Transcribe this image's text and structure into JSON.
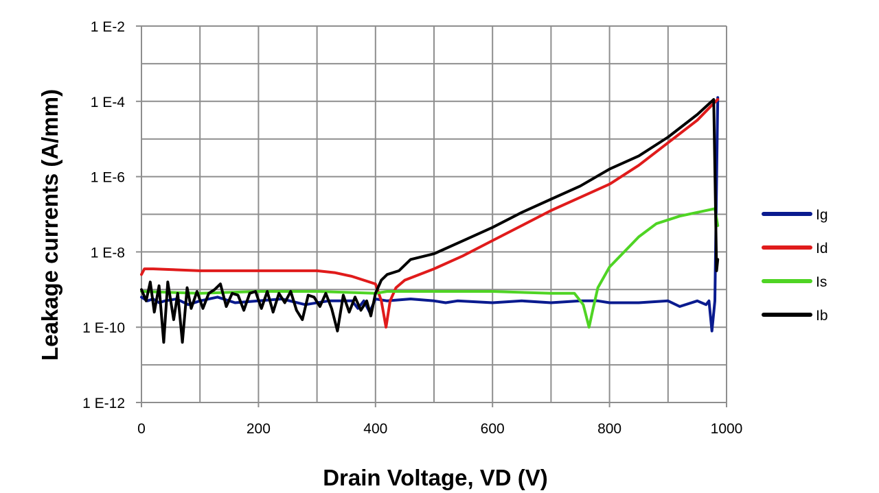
{
  "chart_data": {
    "type": "line",
    "title": "",
    "xlabel": "Drain Voltage, VD (V)",
    "ylabel": "Leakage currents (A/mm)",
    "xlim": [
      0,
      1000
    ],
    "ylim_log10": [
      -12,
      -2
    ],
    "y_scale": "log",
    "grid": true,
    "legend_position": "right",
    "x_ticks": [
      0,
      200,
      400,
      600,
      800,
      1000
    ],
    "x_tick_labels": [
      "0",
      "200",
      "400",
      "600",
      "800",
      "1000"
    ],
    "x_minor_gridlines": [
      100,
      300,
      500,
      700,
      900
    ],
    "y_ticks_log10": [
      -2,
      -4,
      -6,
      -8,
      -10,
      -12
    ],
    "y_tick_labels": [
      "1 E-2",
      "1 E-4",
      "1 E-6",
      "1 E-8",
      "1 E-10",
      "1 E-12"
    ],
    "y_minor_gridlines_log10": [
      -3,
      -5,
      -7,
      -9,
      -11
    ],
    "colors": {
      "Ig": "#0a1b8f",
      "Id": "#e01b1b",
      "Is": "#4fd424",
      "Ib": "#000000",
      "grid": "#8e8e8e"
    },
    "series": [
      {
        "name": "Ig",
        "x": [
          0,
          10,
          20,
          30,
          40,
          60,
          80,
          100,
          130,
          160,
          200,
          240,
          280,
          320,
          360,
          370,
          380,
          390,
          400,
          420,
          460,
          500,
          520,
          540,
          600,
          650,
          700,
          750,
          780,
          800,
          850,
          900,
          920,
          950,
          965,
          970,
          975,
          980,
          985
        ],
        "log10": [
          -9.2,
          -9.3,
          -9.25,
          -9.35,
          -9.3,
          -9.25,
          -9.4,
          -9.3,
          -9.2,
          -9.35,
          -9.3,
          -9.25,
          -9.4,
          -9.3,
          -9.3,
          -9.5,
          -9.3,
          -9.6,
          -9.25,
          -9.3,
          -9.25,
          -9.3,
          -9.35,
          -9.3,
          -9.35,
          -9.3,
          -9.35,
          -9.3,
          -9.3,
          -9.35,
          -9.35,
          -9.3,
          -9.45,
          -9.3,
          -9.4,
          -9.3,
          -10.1,
          -9.3,
          -3.9
        ]
      },
      {
        "name": "Id",
        "x": [
          0,
          5,
          20,
          100,
          200,
          300,
          330,
          360,
          380,
          400,
          410,
          418,
          425,
          435,
          450,
          500,
          550,
          600,
          650,
          700,
          750,
          800,
          850,
          900,
          950,
          975,
          985
        ],
        "log10": [
          -8.6,
          -8.45,
          -8.45,
          -8.5,
          -8.5,
          -8.5,
          -8.55,
          -8.65,
          -8.75,
          -8.85,
          -9.3,
          -10.0,
          -9.3,
          -8.95,
          -8.75,
          -8.45,
          -8.1,
          -7.7,
          -7.3,
          -6.9,
          -6.55,
          -6.2,
          -5.7,
          -5.1,
          -4.5,
          -4.1,
          -3.95
        ]
      },
      {
        "name": "Is",
        "x": [
          0,
          100,
          200,
          300,
          400,
          420,
          500,
          600,
          700,
          740,
          755,
          765,
          772,
          780,
          800,
          850,
          880,
          920,
          980,
          985
        ],
        "log10": [
          -9.05,
          -9.1,
          -9.05,
          -9.05,
          -9.1,
          -9.05,
          -9.05,
          -9.05,
          -9.1,
          -9.1,
          -9.4,
          -10.0,
          -9.5,
          -8.95,
          -8.4,
          -7.6,
          -7.25,
          -7.05,
          -6.85,
          -7.3
        ]
      },
      {
        "name": "Ib",
        "x": [
          0,
          8,
          15,
          22,
          30,
          38,
          45,
          55,
          62,
          70,
          78,
          85,
          95,
          105,
          115,
          125,
          135,
          145,
          155,
          165,
          175,
          185,
          195,
          205,
          215,
          225,
          235,
          245,
          255,
          265,
          275,
          285,
          295,
          305,
          315,
          325,
          335,
          345,
          355,
          365,
          375,
          385,
          392,
          400,
          410,
          420,
          440,
          460,
          500,
          550,
          600,
          650,
          700,
          750,
          800,
          850,
          900,
          950,
          978,
          983,
          985
        ],
        "log10": [
          -9.0,
          -9.3,
          -8.8,
          -9.6,
          -8.9,
          -10.4,
          -8.8,
          -9.8,
          -9.1,
          -10.4,
          -8.95,
          -9.5,
          -9.05,
          -9.5,
          -9.1,
          -9.0,
          -8.85,
          -9.45,
          -9.1,
          -9.15,
          -9.55,
          -9.1,
          -9.05,
          -9.5,
          -9.05,
          -9.6,
          -9.1,
          -9.35,
          -9.05,
          -9.55,
          -9.8,
          -9.15,
          -9.2,
          -9.45,
          -9.1,
          -9.5,
          -10.1,
          -9.15,
          -9.6,
          -9.2,
          -9.55,
          -9.3,
          -9.7,
          -9.1,
          -8.75,
          -8.6,
          -8.5,
          -8.2,
          -8.05,
          -7.7,
          -7.35,
          -6.95,
          -6.6,
          -6.25,
          -5.8,
          -5.45,
          -4.95,
          -4.35,
          -3.95,
          -8.5,
          -8.2
        ]
      }
    ]
  }
}
